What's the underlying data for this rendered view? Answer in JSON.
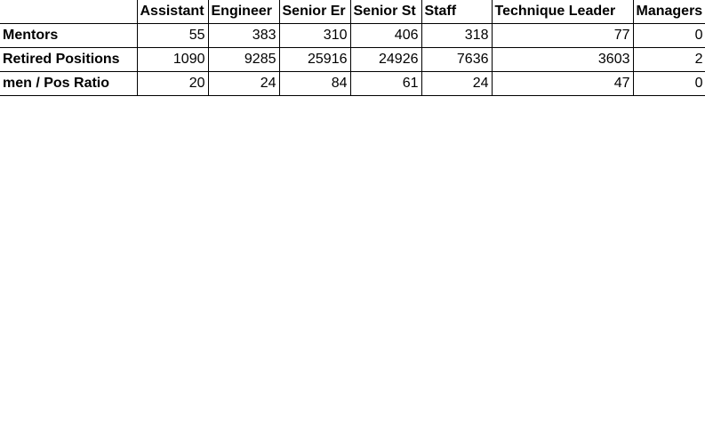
{
  "sheet": {
    "columns": [
      "Assistant",
      "Engineer",
      "Senior Er",
      "Senior St",
      "Staff",
      "Technique Leader",
      "Managers"
    ],
    "rows": [
      {
        "label": "Mentors",
        "values": [
          "55",
          "383",
          "310",
          "406",
          "318",
          "77",
          "0"
        ]
      },
      {
        "label": "Retired Positions",
        "values": [
          "1090",
          "9285",
          "25916",
          "24926",
          "7636",
          "3603",
          "2"
        ]
      },
      {
        "label": "men / Pos Ratio",
        "values": [
          "20",
          "24",
          "84",
          "61",
          "24",
          "47",
          "0"
        ]
      }
    ]
  }
}
